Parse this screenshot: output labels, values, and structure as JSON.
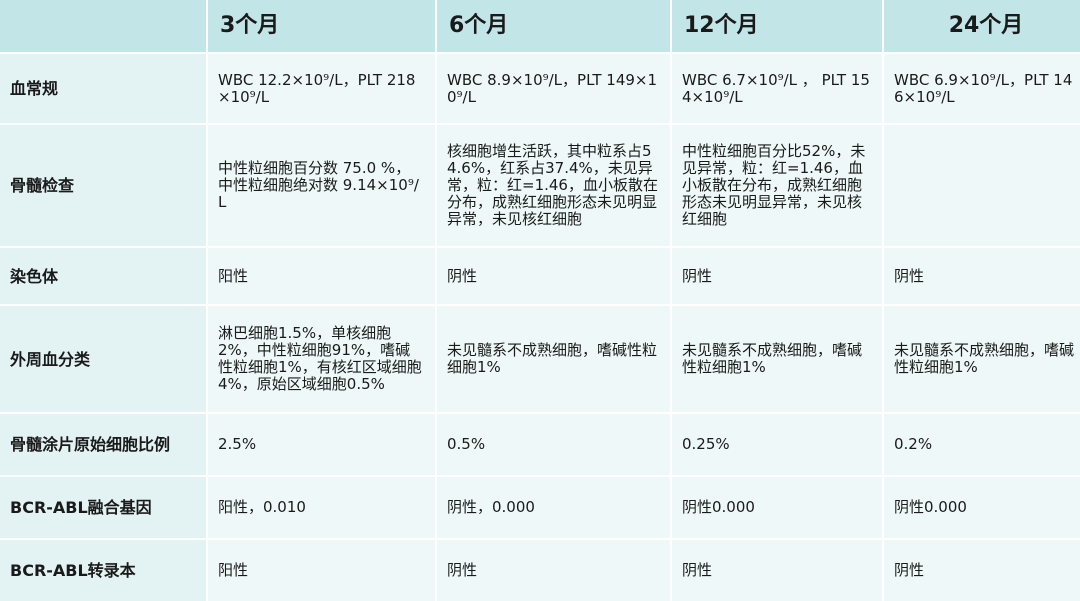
{
  "header": {
    "corner": "",
    "columns": [
      "3个月",
      "6个月",
      "12个月",
      "24个月"
    ]
  },
  "rows": [
    {
      "label": "血常规",
      "cells": [
        "WBC 12.2×10⁹/L，PLT 218×10⁹/L",
        "WBC 8.9×10⁹/L，PLT 149×10⁹/L",
        "WBC 6.7×10⁹/L ， PLT 154×10⁹/L",
        "WBC 6.9×10⁹/L，PLT 146×10⁹/L"
      ]
    },
    {
      "label": "骨髓检查",
      "cells": [
        "中性粒细胞百分数 75.0 %，中性粒细胞绝对数 9.14×10⁹/L",
        "核细胞增生活跃，其中粒系占54.6%，红系占37.4%，未见异常，粒：红=1.46，血小板散在分布，成熟红细胞形态未见明显异常，未见核红细胞",
        "中性粒细胞百分比52%，未见异常，粒：红=1.46，血小板散在分布，成熟红细胞形态未见明显异常，未见核红细胞",
        ""
      ]
    },
    {
      "label": "染色体",
      "cells": [
        "阳性",
        "阴性",
        "阴性",
        "阴性"
      ]
    },
    {
      "label": "外周血分类",
      "cells": [
        "淋巴细胞1.5%，单核细胞2%，中性粒细胞91%，嗜碱性粒细胞1%，有核红区域细胞4%，原始区域细胞0.5%",
        "未见髓系不成熟细胞，嗜碱性粒细胞1%",
        "未见髓系不成熟细胞，嗜碱性粒细胞1%",
        "未见髓系不成熟细胞，嗜碱性粒细胞1%"
      ]
    },
    {
      "label": "骨髓涂片原始细胞比例",
      "cells": [
        "2.5%",
        "0.5%",
        "0.25%",
        "0.2%"
      ]
    },
    {
      "label": "BCR-ABL融合基因",
      "cells": [
        "阳性，0.010",
        "阴性，0.000",
        "阴性0.000",
        "阴性0.000"
      ]
    },
    {
      "label": "BCR-ABL转录本",
      "cells": [
        "阳性",
        "阴性",
        "阴性",
        "阴性"
      ]
    }
  ],
  "colors": {
    "header_bg": "#c2e6e8",
    "label_bg": "#e3f3f4",
    "body_bg": "#eef8f9"
  }
}
